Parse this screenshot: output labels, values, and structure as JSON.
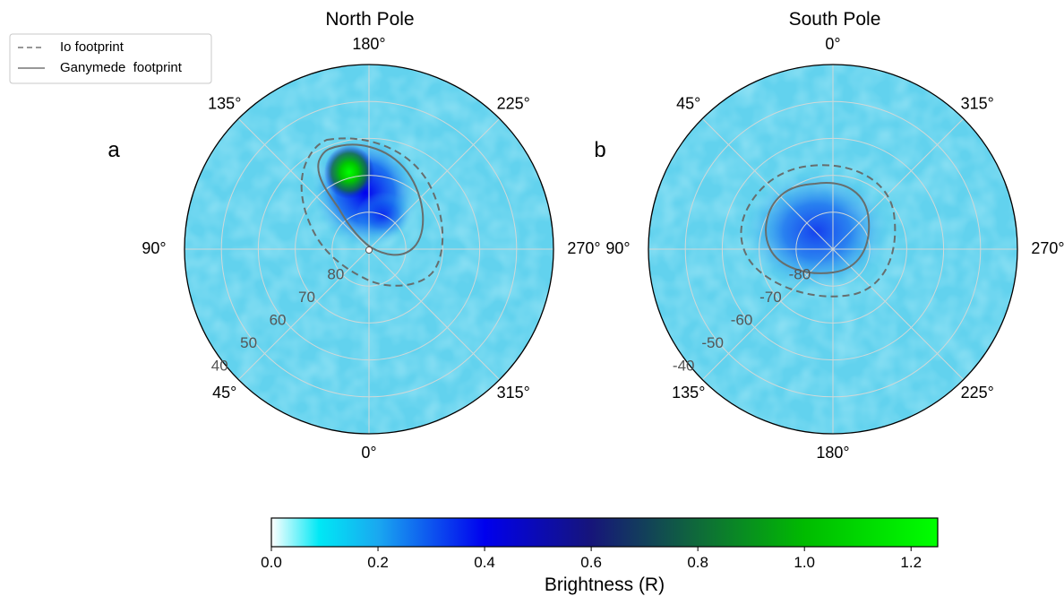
{
  "chart_data": [
    {
      "type": "heatmap",
      "panel": "a",
      "title": "North Pole",
      "projection": "polar",
      "longitude_labels": [
        "180°",
        "225°",
        "270°",
        "315°",
        "0°",
        "45°",
        "90°",
        "135°"
      ],
      "latitude_rings": [
        80,
        70,
        60,
        50,
        40
      ],
      "latitude_labels": [
        "80",
        "70",
        "60",
        "50",
        "40"
      ],
      "series": [
        {
          "name": "Io footprint",
          "style": "dashed",
          "color": "#666e6e"
        },
        {
          "name": "Ganymede  footprint",
          "style": "solid",
          "color": "#666e6e"
        }
      ],
      "brightness_peak": {
        "value": 1.2,
        "lon": 147,
        "lat": 75
      },
      "brightness_background": 0.08
    },
    {
      "type": "heatmap",
      "panel": "b",
      "title": "South Pole",
      "projection": "polar",
      "longitude_labels": [
        "0°",
        "315°",
        "270°",
        "225°",
        "180°",
        "135°",
        "90°",
        "45°"
      ],
      "latitude_rings": [
        -80,
        -70,
        -60,
        -50,
        -40
      ],
      "latitude_labels": [
        "-80",
        "-70",
        "-60",
        "-50",
        "-40"
      ],
      "series": [
        {
          "name": "Io footprint",
          "style": "dashed",
          "color": "#666e6e"
        },
        {
          "name": "Ganymede  footprint",
          "style": "solid",
          "color": "#666e6e"
        }
      ],
      "brightness_peak": {
        "value": 0.45,
        "lon": 80,
        "lat": -84
      },
      "brightness_background": 0.08
    }
  ],
  "legend": {
    "placement": "top-left",
    "entries": [
      {
        "label": "Io footprint",
        "style": "dashed"
      },
      {
        "label": "Ganymede  footprint",
        "style": "solid"
      }
    ]
  },
  "colorbar": {
    "label": "Brightness (R)",
    "range": [
      0.0,
      1.25
    ],
    "ticks": [
      "0.0",
      "0.2",
      "0.4",
      "0.6",
      "0.8",
      "1.0",
      "1.2"
    ],
    "tick_values": [
      0.0,
      0.2,
      0.4,
      0.6,
      0.8,
      1.0,
      1.2
    ],
    "colormap": [
      {
        "v": 0.0,
        "c": "#ffffff"
      },
      {
        "v": 0.09,
        "c": "#00e8f5"
      },
      {
        "v": 0.2,
        "c": "#1aa8f0"
      },
      {
        "v": 0.4,
        "c": "#0000ee"
      },
      {
        "v": 0.6,
        "c": "#16157a"
      },
      {
        "v": 0.8,
        "c": "#0f6a3a"
      },
      {
        "v": 1.0,
        "c": "#00bb00"
      },
      {
        "v": 1.25,
        "c": "#00ff00"
      }
    ]
  },
  "colors": {
    "footprint": "#666e6e",
    "grid": "#d0d8d8",
    "outline": "#000000",
    "background_cyan": "#62d2ee"
  }
}
